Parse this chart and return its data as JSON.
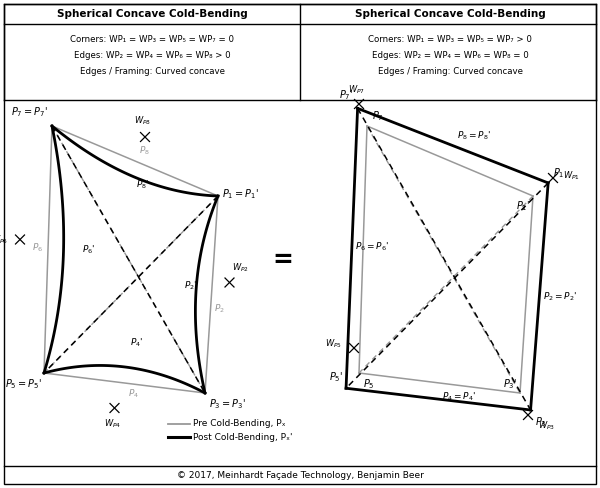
{
  "title_left": "Spherical Concave Cold-Bending",
  "title_right": "Spherical Concave Cold-Bending",
  "left_line1": "Corners: WP₁ = WP₃ = WP₅ = WP₇ = 0",
  "left_line2": "Edges: WP₂ = WP₄ = WP₆ = WP₈ > 0",
  "left_line3": "Edges / Framing: Curved concave",
  "right_line1": "Corners: WP₁ = WP₃ = WP₅ = WP₇ > 0",
  "right_line2": "Edges: WP₂ = WP₄ = WP₆ = WP₈ = 0",
  "right_line3": "Edges / Framing: Curved concave",
  "legend_pre": "Pre Cold-Bending, Pₓ",
  "legend_post": "Post Cold-Bending, Pₓ'",
  "copyright": "© 2017, Meinhardt Façade Technology, Benjamin Beer",
  "bg_color": "#ffffff",
  "border_color": "#000000",
  "pre_color": "#999999",
  "post_color": "#000000",
  "fig_w": 6.0,
  "fig_h": 4.88,
  "dpi": 100
}
